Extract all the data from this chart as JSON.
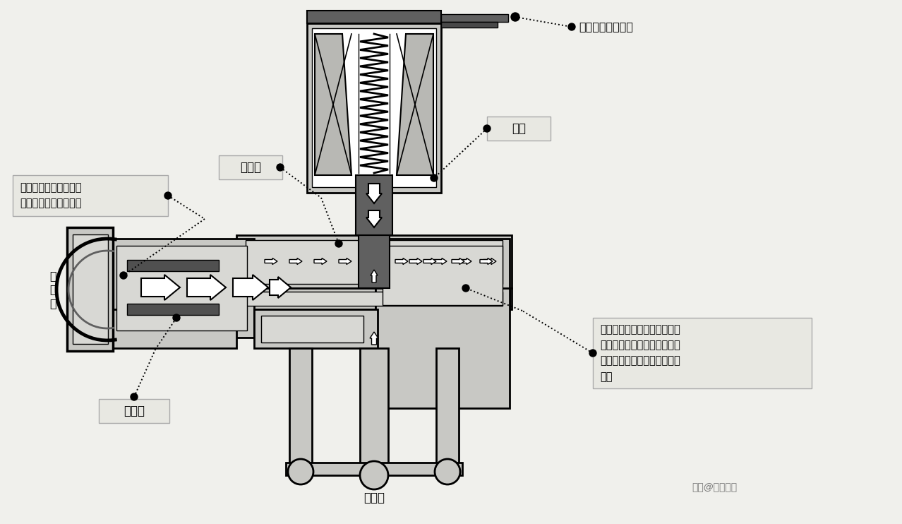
{
  "bg_color": "#f0f0ec",
  "labels": {
    "inlet_solenoid": "进水电磁阀未通电",
    "control_chamber": "控制腔",
    "iron_core": "铁心",
    "water_inlet": "进\n水\n口",
    "water_inlet_chamber": "进水腔",
    "water_outlet": "出水口",
    "description_left": "水由进水腔流入，通过\n加压孔流入到控制腔内",
    "description_right": "橡胶阀和塑料盘在弹簧弹力、\n铁心重力和水压压力的共同作\n用下，紧紧地压在出水口的管\n道口",
    "watermark": "头条@维修人家"
  },
  "colors": {
    "bg": "#f0f0ec",
    "light_gray": "#d0d0cc",
    "mid_gray": "#b0b0aa",
    "dark_gray": "#606060",
    "darker_gray": "#484848",
    "black": "#111111",
    "white": "#ffffff",
    "body_fill": "#c8c8c4",
    "inner_fill": "#d8d8d4",
    "coil_fill": "#b8b8b4",
    "label_bg": "#e8e8e2",
    "seal_dark": "#505050"
  }
}
